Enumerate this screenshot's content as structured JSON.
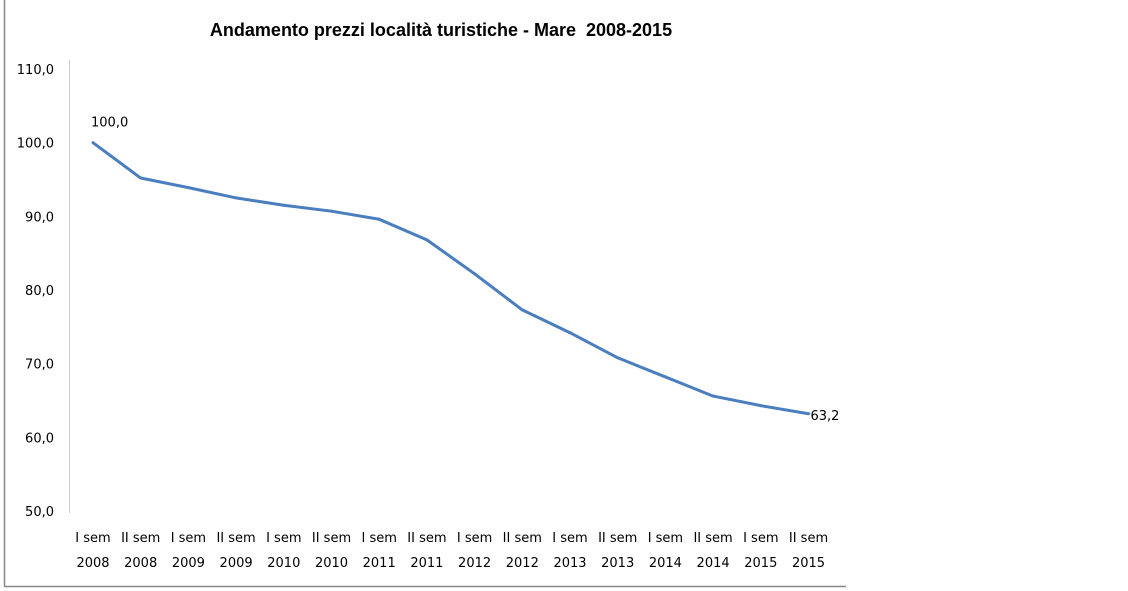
{
  "chart_data": {
    "type": "line",
    "title": "Andamento prezzi località turistiche - Mare  2008-2015",
    "xlabel": "",
    "ylabel": "",
    "ylim": [
      50,
      110
    ],
    "yticks": [
      "50,0",
      "60,0",
      "70,0",
      "80,0",
      "90,0",
      "100,0",
      "110,0"
    ],
    "ytick_values": [
      50,
      60,
      70,
      80,
      90,
      100,
      110
    ],
    "grid": false,
    "legend": "none",
    "categories": [
      [
        "I sem",
        "2008"
      ],
      [
        "II sem",
        "2008"
      ],
      [
        "I sem",
        "2009"
      ],
      [
        "II sem",
        "2009"
      ],
      [
        "I sem",
        "2010"
      ],
      [
        "II sem",
        "2010"
      ],
      [
        "I sem",
        "2011"
      ],
      [
        "II sem",
        "2011"
      ],
      [
        "I sem",
        "2012"
      ],
      [
        "II sem",
        "2012"
      ],
      [
        "I sem",
        "2013"
      ],
      [
        "II sem",
        "2013"
      ],
      [
        "I sem",
        "2014"
      ],
      [
        "II sem",
        "2014"
      ],
      [
        "I sem",
        "2015"
      ],
      [
        "II sem",
        "2015"
      ]
    ],
    "series": [
      {
        "name": "Mare",
        "color": "#4a7ebf",
        "values": [
          100.0,
          95.2,
          93.9,
          92.5,
          91.5,
          90.7,
          89.6,
          86.8,
          82.2,
          77.3,
          74.2,
          70.8,
          68.2,
          65.6,
          64.3,
          63.2
        ]
      }
    ],
    "data_labels": [
      {
        "index": 0,
        "text": "100,0"
      },
      {
        "index": 15,
        "text": "63,2"
      }
    ]
  }
}
